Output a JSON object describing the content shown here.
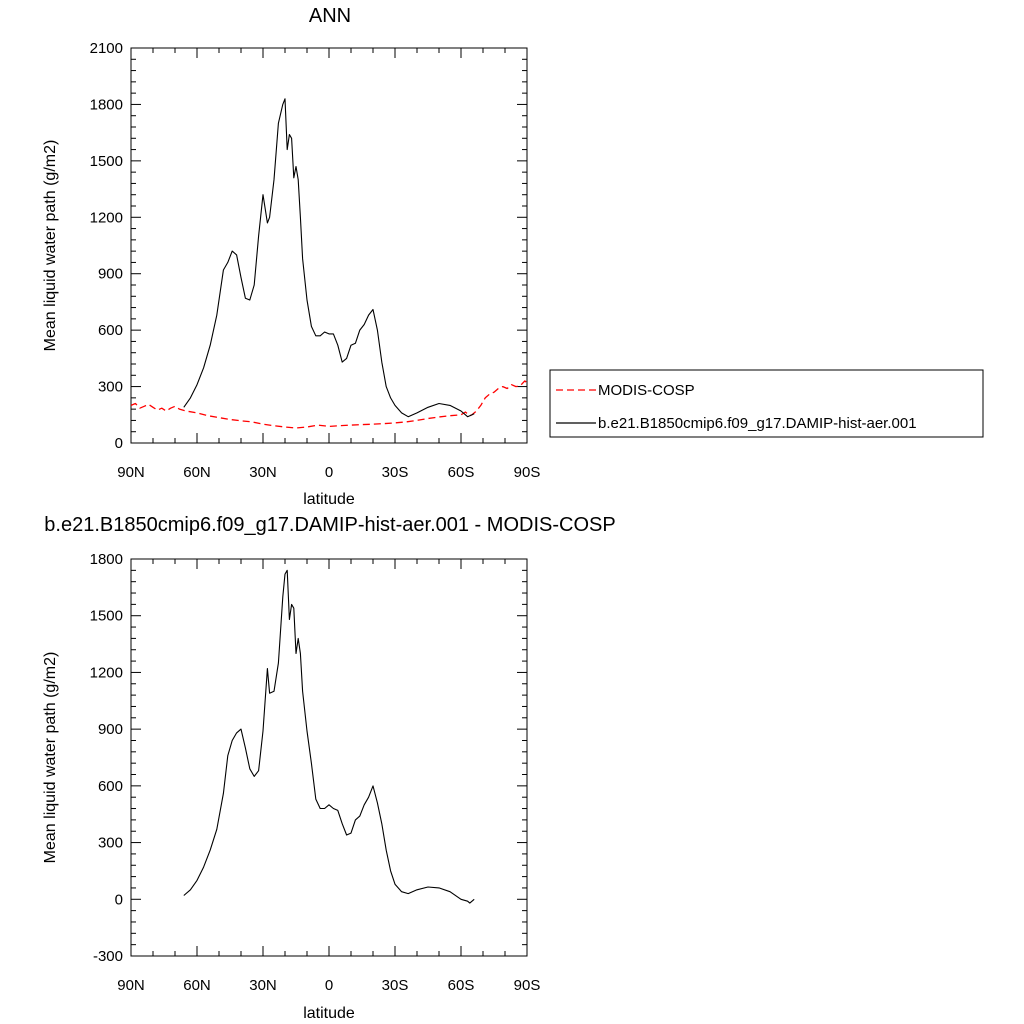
{
  "chart_data": [
    {
      "type": "line",
      "title": "ANN",
      "xlabel": "latitude",
      "ylabel": "Mean liquid water path (g/m2)",
      "xlim": [
        90,
        -90
      ],
      "ylim": [
        0,
        2100
      ],
      "x_ticks": [
        90,
        60,
        30,
        0,
        -30,
        -60,
        -90
      ],
      "x_tick_labels": [
        "90N",
        "60N",
        "30N",
        "0",
        "30S",
        "60S",
        "90S"
      ],
      "y_ticks": [
        0,
        300,
        600,
        900,
        1200,
        1500,
        1800,
        2100
      ],
      "y_tick_labels": [
        "0",
        "300",
        "600",
        "900",
        "1200",
        "1500",
        "1800",
        "2100"
      ],
      "legend_position": "right",
      "series": [
        {
          "name": "MODIS-COSP",
          "color": "#ff0000",
          "style": "dashed",
          "x": [
            90,
            88,
            86,
            84,
            82,
            80,
            78,
            76,
            74,
            72,
            70,
            68,
            65,
            60,
            55,
            50,
            45,
            40,
            35,
            30,
            25,
            20,
            15,
            10,
            5,
            0,
            -5,
            -10,
            -15,
            -20,
            -25,
            -30,
            -35,
            -40,
            -45,
            -50,
            -55,
            -60,
            -62,
            -64,
            -65,
            -67,
            -69,
            -71,
            -73,
            -75,
            -77,
            -79,
            -81,
            -83,
            -85,
            -87,
            -89,
            -90
          ],
          "y": [
            200,
            210,
            185,
            195,
            205,
            190,
            175,
            185,
            170,
            185,
            195,
            180,
            170,
            160,
            145,
            135,
            125,
            118,
            112,
            100,
            92,
            85,
            80,
            85,
            95,
            88,
            92,
            95,
            98,
            100,
            103,
            107,
            112,
            120,
            130,
            138,
            145,
            150,
            165,
            145,
            150,
            170,
            200,
            240,
            260,
            270,
            290,
            300,
            290,
            310,
            300,
            305,
            330,
            320
          ]
        },
        {
          "name": "b.e21.B1850cmip6.f09_g17.DAMIP-hist-aer.001",
          "color": "#000000",
          "style": "solid",
          "x": [
            66,
            63,
            60,
            57,
            54,
            51,
            48,
            46,
            44,
            42,
            40,
            38,
            36,
            34,
            32,
            30,
            28,
            27,
            25,
            23,
            21,
            20,
            19,
            18,
            17,
            16,
            15,
            14,
            13,
            12,
            10,
            8,
            6,
            4,
            2,
            0,
            -2,
            -4,
            -6,
            -8,
            -10,
            -12,
            -14,
            -16,
            -18,
            -20,
            -22,
            -24,
            -26,
            -28,
            -30,
            -33,
            -36,
            -40,
            -45,
            -50,
            -55,
            -60,
            -63,
            -66
          ],
          "y": [
            190,
            240,
            310,
            400,
            520,
            680,
            920,
            960,
            1020,
            1000,
            880,
            770,
            760,
            840,
            1100,
            1320,
            1170,
            1200,
            1400,
            1700,
            1800,
            1830,
            1560,
            1640,
            1620,
            1410,
            1470,
            1400,
            1200,
            980,
            760,
            620,
            570,
            570,
            590,
            580,
            580,
            520,
            430,
            450,
            520,
            530,
            600,
            630,
            680,
            710,
            600,
            430,
            300,
            240,
            200,
            160,
            140,
            160,
            190,
            210,
            200,
            170,
            140,
            155
          ]
        }
      ]
    },
    {
      "type": "line",
      "title": "b.e21.B1850cmip6.f09_g17.DAMIP-hist-aer.001 - MODIS-COSP",
      "xlabel": "latitude",
      "ylabel": "Mean liquid water path (g/m2)",
      "xlim": [
        90,
        -90
      ],
      "ylim": [
        -300,
        1800
      ],
      "x_ticks": [
        90,
        60,
        30,
        0,
        -30,
        -60,
        -90
      ],
      "x_tick_labels": [
        "90N",
        "60N",
        "30N",
        "0",
        "30S",
        "60S",
        "90S"
      ],
      "y_ticks": [
        -300,
        0,
        300,
        600,
        900,
        1200,
        1500,
        1800
      ],
      "y_tick_labels": [
        "-300",
        "0",
        "300",
        "600",
        "900",
        "1200",
        "1500",
        "1800"
      ],
      "series": [
        {
          "color": "#000000",
          "style": "solid",
          "x": [
            66,
            63,
            60,
            57,
            54,
            51,
            48,
            46,
            44,
            42,
            40,
            38,
            36,
            34,
            32,
            30,
            28,
            27,
            25,
            23,
            21,
            20,
            19,
            18,
            17,
            16,
            15,
            14,
            13,
            12,
            10,
            8,
            6,
            4,
            2,
            0,
            -2,
            -4,
            -6,
            -8,
            -10,
            -12,
            -14,
            -16,
            -18,
            -20,
            -22,
            -24,
            -26,
            -28,
            -30,
            -33,
            -36,
            -40,
            -45,
            -50,
            -55,
            -60,
            -63,
            -64,
            -66
          ],
          "y": [
            20,
            50,
            100,
            170,
            260,
            370,
            560,
            760,
            840,
            880,
            900,
            800,
            690,
            650,
            680,
            890,
            1220,
            1090,
            1100,
            1250,
            1600,
            1720,
            1740,
            1480,
            1560,
            1540,
            1300,
            1380,
            1300,
            1100,
            890,
            720,
            530,
            480,
            480,
            500,
            480,
            470,
            400,
            340,
            350,
            420,
            440,
            500,
            540,
            600,
            510,
            400,
            260,
            150,
            80,
            40,
            30,
            50,
            65,
            60,
            40,
            0,
            -10,
            -20,
            0
          ]
        }
      ]
    }
  ]
}
